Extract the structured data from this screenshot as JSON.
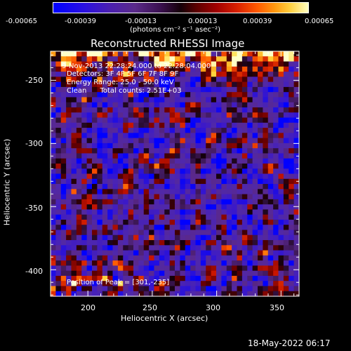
{
  "colorbar": {
    "tick_labels": [
      "-0.00065",
      "-0.00039",
      "-0.00013",
      "0.00013",
      "0.00039",
      "0.00065"
    ],
    "units_label": "(photons cm⁻² s⁻¹ asec⁻²)",
    "range": [
      -0.00065,
      0.00065
    ]
  },
  "chart_data": {
    "type": "heatmap",
    "title": "Reconstructed RHESSI Image",
    "xlabel": "Heliocentric X (arcsec)",
    "ylabel": "Heliocentric Y (arcsec)",
    "xlim": [
      171,
      364
    ],
    "ylim": [
      -421,
      -227
    ],
    "xticks": [
      200,
      250,
      300,
      350
    ],
    "yticks": [
      -250,
      -300,
      -350,
      -400
    ],
    "annotations": {
      "time_range": "9-Nov-2013 22:28:24.000 to 22:28:04.000",
      "detectors": "Detectors: 3F 4F 5F 6F 7F 8F 9F",
      "energy_range": "Energy Range: 25.0 - 50.0 keV",
      "method": "Clean      Total counts: 2.51E+03",
      "peak": "Position of Peak = [301,-235]"
    },
    "peak_position": [
      301,
      -235
    ]
  },
  "footer": {
    "timestamp": "18-May-2022 06:17"
  }
}
